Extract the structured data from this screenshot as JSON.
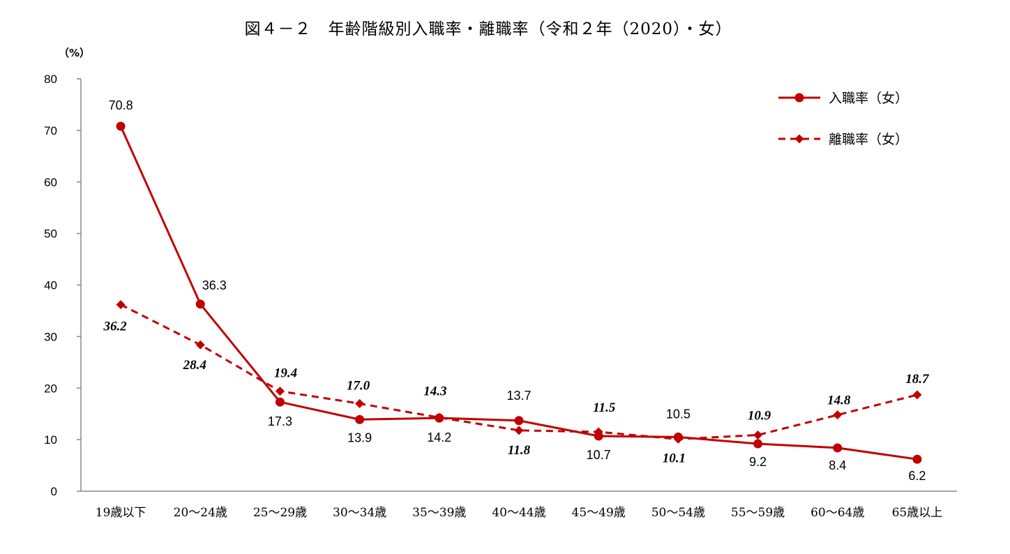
{
  "chart_data": {
    "type": "line",
    "title": "図４－２　年齢階級別入職率・離職率（令和２年（2020）・女）",
    "y_unit": "（%）",
    "categories": [
      "19歳以下",
      "20～24歳",
      "25～29歳",
      "30～34歳",
      "35～39歳",
      "40～44歳",
      "45～49歳",
      "50～54歳",
      "55～59歳",
      "60～64歳",
      "65歳以上"
    ],
    "ylim": [
      0,
      80
    ],
    "yticks": [
      0,
      10,
      20,
      30,
      40,
      50,
      60,
      70,
      80
    ],
    "grid": false,
    "legend_position": "top-right",
    "series": [
      {
        "name": "入職率（女）",
        "color": "#C00000",
        "line_style": "solid",
        "marker": "circle",
        "values": [
          70.8,
          36.3,
          17.3,
          13.9,
          14.2,
          13.7,
          10.7,
          10.5,
          9.2,
          8.4,
          6.2
        ],
        "labels": [
          "70.8",
          "36.3",
          "17.3",
          "13.9",
          "14.2",
          "13.7",
          "10.7",
          "10.5",
          "9.2",
          "8.4",
          "6.2"
        ]
      },
      {
        "name": "離職率（女）",
        "color": "#C00000",
        "line_style": "dashed",
        "marker": "diamond",
        "values": [
          36.2,
          28.4,
          19.4,
          17.0,
          14.3,
          11.8,
          11.5,
          10.1,
          10.9,
          14.8,
          18.7
        ],
        "labels": [
          "36.2",
          "28.4",
          "19.4",
          "17.0",
          "14.3",
          "11.8",
          "11.5",
          "10.1",
          "10.9",
          "14.8",
          "18.7"
        ]
      }
    ]
  }
}
